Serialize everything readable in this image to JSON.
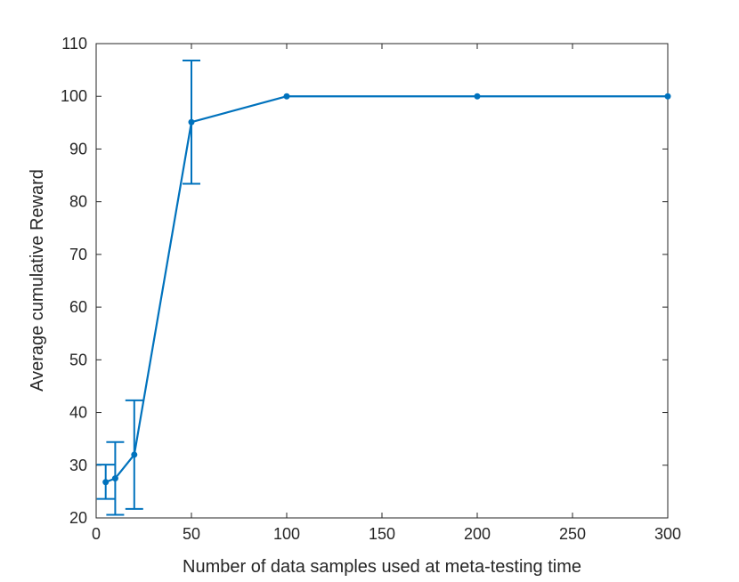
{
  "chart_data": {
    "type": "line",
    "title": "",
    "xlabel": "Number of data samples used at meta-testing time",
    "ylabel": "Average cumulative Reward",
    "xlim": [
      0,
      300
    ],
    "ylim": [
      20,
      110
    ],
    "xticks": [
      0,
      50,
      100,
      150,
      200,
      250,
      300
    ],
    "yticks": [
      20,
      30,
      40,
      50,
      60,
      70,
      80,
      90,
      100,
      110
    ],
    "grid": false,
    "line_color": "#0072BD",
    "axis_color": "#262626",
    "series": [
      {
        "x": [
          5,
          10,
          20,
          50,
          100,
          200,
          300
        ],
        "y": [
          26.8,
          27.5,
          32.0,
          95.1,
          100.0,
          100.0,
          100.0
        ],
        "err_low": [
          23.6,
          20.6,
          21.7,
          83.4,
          100.0,
          100.0,
          100.0
        ],
        "err_high": [
          30.1,
          34.4,
          42.3,
          106.8,
          100.0,
          100.0,
          100.0
        ]
      }
    ]
  }
}
